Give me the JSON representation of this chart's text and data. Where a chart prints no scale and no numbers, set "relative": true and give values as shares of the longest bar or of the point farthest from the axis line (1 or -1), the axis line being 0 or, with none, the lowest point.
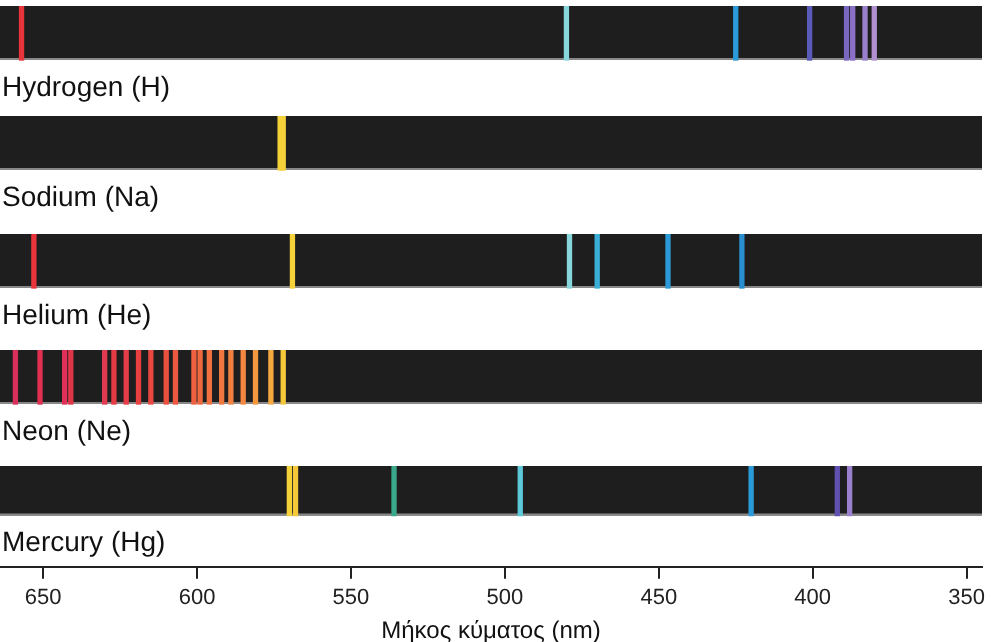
{
  "chart_data": [
    {
      "type": "bar",
      "title": "Hydrogen (H)",
      "relative": true,
      "xlim": [
        664,
        345
      ],
      "tick_labels": false,
      "x": [
        657,
        480,
        425,
        401,
        389,
        387,
        383,
        380
      ],
      "values": [
        1,
        1,
        1,
        1,
        1,
        1,
        1,
        1
      ],
      "colors": [
        "#e8343a",
        "#86d6dc",
        "#2a9bd8",
        "#5a5ab8",
        "#7a68c0",
        "#8a70c8",
        "#9a80cc",
        "#b090d0"
      ]
    },
    {
      "type": "bar",
      "title": "Sodium (Na)",
      "relative": true,
      "xlim": [
        664,
        345
      ],
      "tick_labels": false,
      "x": [
        573,
        572
      ],
      "values": [
        1,
        1
      ],
      "colors": [
        "#f5d23a",
        "#f5d23a"
      ]
    },
    {
      "type": "bar",
      "title": "Helium (He)",
      "relative": true,
      "xlim": [
        664,
        345
      ],
      "tick_labels": false,
      "x": [
        653,
        569,
        479,
        470,
        447,
        423
      ],
      "values": [
        1,
        1,
        1,
        1,
        1,
        1
      ],
      "colors": [
        "#e8343a",
        "#f5d23a",
        "#86d6dc",
        "#3ab0d8",
        "#2a9bd8",
        "#2a8ed0"
      ]
    },
    {
      "type": "bar",
      "title": "Neon (Ne)",
      "relative": true,
      "xlim": [
        664,
        345
      ],
      "tick_labels": false,
      "x": [
        659,
        651,
        643,
        641,
        630,
        627,
        623,
        619,
        615,
        610,
        607,
        601,
        599,
        596,
        592,
        589,
        585,
        581,
        576,
        572
      ],
      "values": [
        1,
        1,
        1,
        1,
        1,
        1,
        1,
        1,
        1,
        1,
        1,
        1,
        1,
        1,
        1,
        1,
        1,
        1,
        1,
        1
      ],
      "colors": [
        "#d8305a",
        "#e03050",
        "#e0305a",
        "#e03448",
        "#e03a50",
        "#e43a44",
        "#e43c48",
        "#e84040",
        "#e84840",
        "#ea5040",
        "#ec5840",
        "#ee6040",
        "#ee6840",
        "#f07040",
        "#f07840",
        "#f28040",
        "#f48840",
        "#f49840",
        "#f4a840",
        "#f5c83a"
      ]
    },
    {
      "type": "bar",
      "title": "Mercury (Hg)",
      "relative": true,
      "xlim": [
        664,
        345
      ],
      "xticks": [
        650,
        600,
        550,
        500,
        450,
        400,
        350
      ],
      "xlabel": "Μήκος κύματος (nm)",
      "x": [
        570,
        568,
        536,
        495,
        420,
        392,
        388
      ],
      "values": [
        1,
        1,
        1,
        1,
        1,
        1,
        1
      ],
      "colors": [
        "#f5d23a",
        "#f5c83a",
        "#3aa88a",
        "#5cc8d8",
        "#2a9bd8",
        "#6050b0",
        "#9a80cc"
      ]
    }
  ]
}
